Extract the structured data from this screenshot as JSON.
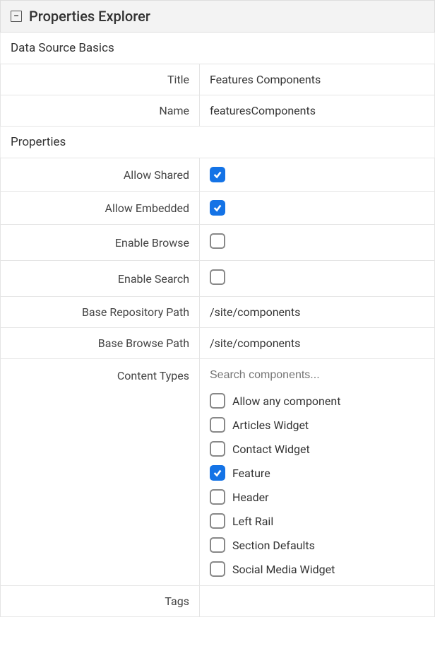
{
  "panel": {
    "title": "Properties Explorer",
    "collapse_symbol": "−"
  },
  "sections": {
    "basics": {
      "heading": "Data Source Basics",
      "title_label": "Title",
      "title_value": "Features Components",
      "name_label": "Name",
      "name_value": "featuresComponents"
    },
    "properties": {
      "heading": "Properties",
      "allow_shared": {
        "label": "Allow Shared",
        "checked": true
      },
      "allow_embedded": {
        "label": "Allow Embedded",
        "checked": true
      },
      "enable_browse": {
        "label": "Enable Browse",
        "checked": false
      },
      "enable_search": {
        "label": "Enable Search",
        "checked": false
      },
      "base_repo_path": {
        "label": "Base Repository Path",
        "value": "/site/components"
      },
      "base_browse_path": {
        "label": "Base Browse Path",
        "value": "/site/components"
      },
      "content_types": {
        "label": "Content Types",
        "search_placeholder": "Search components...",
        "items": [
          {
            "label": "Allow any component",
            "checked": false
          },
          {
            "label": "Articles Widget",
            "checked": false
          },
          {
            "label": "Contact Widget",
            "checked": false
          },
          {
            "label": "Feature",
            "checked": true
          },
          {
            "label": "Header",
            "checked": false
          },
          {
            "label": "Left Rail",
            "checked": false
          },
          {
            "label": "Section Defaults",
            "checked": false
          },
          {
            "label": "Social Media Widget",
            "checked": false
          }
        ]
      },
      "tags": {
        "label": "Tags",
        "value": ""
      }
    }
  },
  "style": {
    "checkbox_checked_bg": "#1473E6",
    "checkbox_border": "#888888",
    "border_color": "#e5e5e5",
    "header_bg": "#f3f3f3"
  }
}
